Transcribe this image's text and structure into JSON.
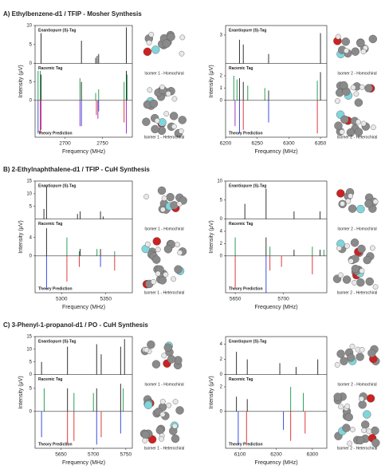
{
  "sections": [
    {
      "title": "A) Ethylbenzene-d1 / TFIP - Mosher Synthesis",
      "isomer_labels": [
        {
          "text": "Isomer 1 - Homochiral",
          "color": "#2a3fd0"
        },
        {
          "text": "Isomer 1 - Heterochiral",
          "color": "#d42a2a"
        },
        {
          "text": "Isomer 2 - Homochiral",
          "color": "#2a3fd0"
        },
        {
          "text": "Isomer 2 - Heterochiral",
          "color": "#d42a2a"
        }
      ]
    },
    {
      "title": "B) 2-Ethylnaphthalene-d1 / TFIP - CuH Synthesis",
      "isomer_labels": [
        {
          "text": "Isomer 1 - Homochiral",
          "color": "#2a3fd0"
        },
        {
          "text": "Isomer 1 - Heterochiral",
          "color": "#d42a2a"
        },
        {
          "text": "Isomer 2 - Homochiral",
          "color": "#2a3fd0"
        },
        {
          "text": "Isomer 2 - Heterochiral",
          "color": "#d42a2a"
        }
      ]
    },
    {
      "title": "C) 3-Phenyl-1-propanol-d1 / PO - CuH Synthesis",
      "isomer_labels": [
        {
          "text": "Isomer 1 - Homochiral",
          "color": "#2a3fd0"
        },
        {
          "text": "Isomer 1 - Heterochiral",
          "color": "#d42a2a"
        },
        {
          "text": "Isomer 2 - Homochiral",
          "color": "#2a3fd0"
        },
        {
          "text": "Isomer 2 - Heterochiral",
          "color": "#d42a2a"
        }
      ]
    }
  ],
  "chart_data": [
    {
      "type": "stick",
      "xlabel": "Frequency (MHz)",
      "ylabel": "Intensity (μV)",
      "xlim": [
        2660,
        2790
      ],
      "xticks": [
        2700,
        2750
      ],
      "panels": [
        {
          "label": "Enantiopure (S)-Tag",
          "ylim": [
            0,
            10
          ],
          "yticks": [
            0,
            5,
            10
          ],
          "series": [
            {
              "color": "#333333",
              "x": [
                2668,
                2722,
                2741,
                2743,
                2745,
                2782
              ],
              "values": [
                8,
                6,
                1.5,
                2,
                2.5,
                9.5
              ]
            }
          ]
        },
        {
          "label": "Racemic Tag",
          "ylim": [
            0,
            10
          ],
          "yticks": [
            0,
            5
          ],
          "series": [
            {
              "color": "#333333",
              "x": [
                2668,
                2722,
                2782
              ],
              "values": [
                7,
                5,
                8
              ]
            },
            {
              "color": "#2aa05a",
              "x": [
                2664,
                2667,
                2720,
                2741,
                2745,
                2779,
                2783
              ],
              "values": [
                8,
                8,
                6,
                2,
                3,
                5,
                7
              ]
            }
          ]
        },
        {
          "label": "Theory Prediction",
          "ylim": [
            -1,
            0
          ],
          "series": [
            {
              "color": "#3a4ee0",
              "x": [
                2664,
                2722,
                2745
              ],
              "values": [
                -0.9,
                -0.7,
                -0.3
              ]
            },
            {
              "color": "#e03a3a",
              "x": [
                2667,
                2742,
                2779
              ],
              "values": [
                -0.9,
                -0.4,
                -0.6
              ]
            },
            {
              "color": "#9a3ac8",
              "x": [
                2668,
                2720,
                2744,
                2782
              ],
              "values": [
                -0.8,
                -0.7,
                -0.5,
                -0.9
              ]
            }
          ]
        }
      ]
    },
    {
      "type": "stick",
      "xlabel": "Frequency (MHz)",
      "ylabel": "Intensity (μV)",
      "xlim": [
        6200,
        6360
      ],
      "xticks": [
        6200,
        6250,
        6300,
        6350
      ],
      "panels": [
        {
          "label": "Enantiopure (S)-Tag",
          "ylim": [
            0,
            4
          ],
          "yticks": [
            3
          ],
          "series": [
            {
              "color": "#333333",
              "x": [
                6222,
                6228,
                6268,
                6350
              ],
              "values": [
                2.5,
                2,
                1,
                3.2
              ]
            }
          ]
        },
        {
          "label": "Racemic Tag",
          "ylim": [
            0,
            3
          ],
          "yticks": [
            0,
            1,
            2
          ],
          "series": [
            {
              "color": "#333333",
              "x": [
                6222,
                6228,
                6268,
                6350
              ],
              "values": [
                1.8,
                1.5,
                0.8,
                2.3
              ]
            },
            {
              "color": "#2aa05a",
              "x": [
                6213,
                6218,
                6235,
                6262,
                6345
              ],
              "values": [
                2,
                1.7,
                1.2,
                1,
                1.6
              ]
            }
          ]
        },
        {
          "label": "Theory Prediction",
          "ylim": [
            -1,
            0
          ],
          "series": [
            {
              "color": "#3a4ee0",
              "x": [
                6222,
                6268
              ],
              "values": [
                -0.9,
                -0.6
              ]
            },
            {
              "color": "#e03a3a",
              "x": [
                6228,
                6345
              ],
              "values": [
                -0.8,
                -0.9
              ]
            },
            {
              "color": "#9a3ac8",
              "x": [
                6215
              ],
              "values": [
                -0.7
              ]
            }
          ]
        }
      ]
    },
    {
      "type": "stick",
      "xlabel": "Frequency (MHz)",
      "ylabel": "Intensity (μV)",
      "xlim": [
        5270,
        5380
      ],
      "xticks": [
        5300,
        5350
      ],
      "panels": [
        {
          "label": "Enantiopure (S)-Tag",
          "ylim": [
            0,
            15
          ],
          "yticks": [
            5,
            10,
            15
          ],
          "series": [
            {
              "color": "#333333",
              "x": [
                5280,
                5283,
                5318,
                5321,
                5344,
                5347
              ],
              "values": [
                4,
                13,
                2,
                3,
                3,
                1
              ]
            }
          ]
        },
        {
          "label": "Racemic Tag",
          "ylim": [
            0,
            8
          ],
          "yticks": [
            0,
            4
          ],
          "series": [
            {
              "color": "#333333",
              "x": [
                5283,
                5321,
                5344
              ],
              "values": [
                6,
                1.5,
                1.5
              ]
            },
            {
              "color": "#2aa05a",
              "x": [
                5306,
                5320,
                5340,
                5360
              ],
              "values": [
                4,
                1,
                1.5,
                1
              ]
            }
          ]
        },
        {
          "label": "Theory Prediction",
          "ylim": [
            -1,
            0
          ],
          "series": [
            {
              "color": "#3a4ee0",
              "x": [
                5283,
                5344
              ],
              "values": [
                -0.9,
                -0.3
              ]
            },
            {
              "color": "#e03a3a",
              "x": [
                5306,
                5320,
                5360
              ],
              "values": [
                -0.7,
                -0.3,
                -0.4
              ]
            }
          ]
        }
      ]
    },
    {
      "type": "stick",
      "xlabel": "Frequency (MHz)",
      "ylabel": "Intensity (μV)",
      "xlim": [
        5640,
        5745
      ],
      "xticks": [
        5650,
        5700
      ],
      "panels": [
        {
          "label": "Enantiopure (S)-Tag",
          "ylim": [
            0,
            10
          ],
          "yticks": [
            0,
            5,
            10
          ],
          "series": [
            {
              "color": "#333333",
              "x": [
                5660,
                5682,
                5711,
                5738
              ],
              "values": [
                4,
                8,
                2,
                2
              ]
            }
          ]
        },
        {
          "label": "Racemic Tag",
          "ylim": [
            0,
            6
          ],
          "yticks": [
            0,
            2,
            4
          ],
          "series": [
            {
              "color": "#333333",
              "x": [
                5682,
                5711,
                5738
              ],
              "values": [
                3,
                1,
                1
              ]
            },
            {
              "color": "#2aa05a",
              "x": [
                5650,
                5686,
                5730,
                5742
              ],
              "values": [
                3,
                1.5,
                1.5,
                1
              ]
            }
          ]
        },
        {
          "label": "Theory Prediction",
          "ylim": [
            -1,
            0
          ],
          "series": [
            {
              "color": "#3a4ee0",
              "x": [
                5682
              ],
              "values": [
                -1
              ]
            },
            {
              "color": "#e03a3a",
              "x": [
                5650,
                5686,
                5698,
                5730
              ],
              "values": [
                -0.9,
                -0.4,
                -0.3,
                -0.5
              ]
            }
          ]
        }
      ]
    },
    {
      "type": "stick",
      "xlabel": "Frequency (MHz)",
      "ylabel": "Intensity (μV)",
      "xlim": [
        5610,
        5760
      ],
      "xticks": [
        5650,
        5700,
        5750
      ],
      "panels": [
        {
          "label": "Enantiopure (S)-Tag",
          "ylim": [
            0,
            15
          ],
          "yticks": [
            0,
            5,
            10,
            15
          ],
          "series": [
            {
              "color": "#333333",
              "x": [
                5620,
                5660,
                5705,
                5712,
                5742,
                5748
              ],
              "values": [
                5,
                11,
                12,
                8,
                11,
                14
              ]
            }
          ]
        },
        {
          "label": "Racemic Tag",
          "ylim": [
            0,
            8
          ],
          "yticks": [
            0,
            5
          ],
          "series": [
            {
              "color": "#333333",
              "x": [
                5660,
                5705,
                5742
              ],
              "values": [
                5,
                5,
                6
              ]
            },
            {
              "color": "#2aa05a",
              "x": [
                5624,
                5670,
                5700,
                5746
              ],
              "values": [
                5,
                4,
                4,
                5
              ]
            }
          ]
        },
        {
          "label": "Theory Prediction",
          "ylim": [
            -1,
            0
          ],
          "series": [
            {
              "color": "#3a4ee0",
              "x": [
                5620,
                5705,
                5742
              ],
              "values": [
                -0.7,
                -0.9,
                -0.6
              ]
            },
            {
              "color": "#e03a3a",
              "x": [
                5660,
                5670,
                5712
              ],
              "values": [
                -0.9,
                -0.8,
                -0.7
              ]
            }
          ]
        }
      ]
    },
    {
      "type": "stick",
      "xlabel": "Frequency (MHz)",
      "ylabel": "Intensity (μV)",
      "xlim": [
        6060,
        6340
      ],
      "xticks": [
        6100,
        6200,
        6300
      ],
      "panels": [
        {
          "label": "Enantiopure (S)-Tag",
          "ylim": [
            0,
            5
          ],
          "yticks": [
            0,
            2,
            4
          ],
          "series": [
            {
              "color": "#333333",
              "x": [
                6090,
                6120,
                6210,
                6255,
                6315
              ],
              "values": [
                3,
                2,
                1.5,
                1,
                2
              ]
            }
          ]
        },
        {
          "label": "Racemic Tag",
          "ylim": [
            0,
            3
          ],
          "yticks": [
            0,
            2
          ],
          "series": [
            {
              "color": "#333333",
              "x": [
                6090,
                6120
              ],
              "values": [
                1.2,
                1
              ]
            },
            {
              "color": "#2aa05a",
              "x": [
                6240,
                6275
              ],
              "values": [
                2,
                1.5
              ]
            }
          ]
        },
        {
          "label": "Theory Prediction",
          "ylim": [
            -1,
            0
          ],
          "series": [
            {
              "color": "#3a4ee0",
              "x": [
                6095,
                6220
              ],
              "values": [
                -0.9,
                -0.5
              ]
            },
            {
              "color": "#e03a3a",
              "x": [
                6118,
                6240,
                6280
              ],
              "values": [
                -0.9,
                -0.8,
                -0.6
              ]
            }
          ]
        }
      ]
    }
  ]
}
